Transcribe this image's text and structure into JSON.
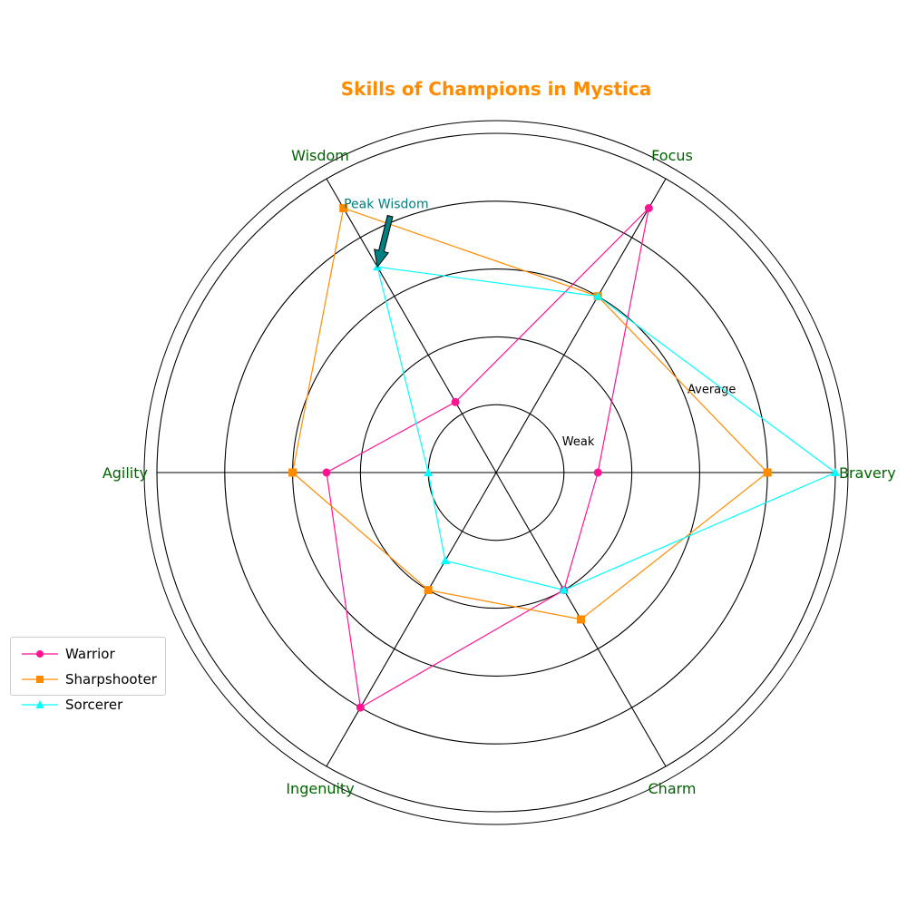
{
  "chart_data": {
    "type": "radar",
    "title": "Skills of Champions in Mystica",
    "axes": [
      "Bravery",
      "Focus",
      "Wisdom",
      "Agility",
      "Ingenuity",
      "Charm"
    ],
    "rlim": [
      0,
      5
    ],
    "rticks": [
      1,
      2,
      3,
      4,
      5
    ],
    "rtick_labels": [
      {
        "value": 1,
        "label": "Weak"
      },
      {
        "value": 3,
        "label": "Average"
      }
    ],
    "series": [
      {
        "name": "Warrior",
        "color": "#ff1493",
        "marker": "circle",
        "values": [
          1.5,
          4.5,
          1.2,
          2.5,
          4.0,
          2.0
        ]
      },
      {
        "name": "Sharpshooter",
        "color": "#ff8c00",
        "marker": "square",
        "values": [
          4.0,
          3.0,
          4.5,
          3.0,
          2.0,
          2.5
        ]
      },
      {
        "name": "Sorcerer",
        "color": "#00ffff",
        "marker": "triangle",
        "values": [
          5.0,
          3.0,
          3.5,
          1.0,
          1.5,
          2.0
        ]
      }
    ],
    "annotations": [
      {
        "text": "Peak Wisdom",
        "axis": "Wisdom",
        "series": "Sorcerer",
        "value": 3.5,
        "color": "#008080"
      }
    ],
    "legend_position": "lower-left",
    "grid": true,
    "colors": {
      "title": "#ff8c00",
      "axis_labels": "#006400"
    }
  }
}
